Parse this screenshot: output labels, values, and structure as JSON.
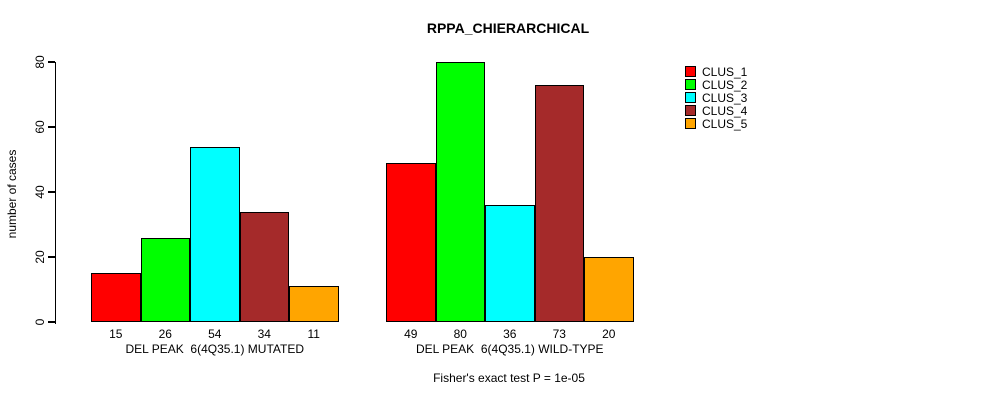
{
  "chart_data": {
    "type": "bar",
    "title": "RPPA_CHIERARCHICAL",
    "ylabel": "number of cases",
    "ylim": [
      0,
      80
    ],
    "yticks": [
      0,
      20,
      40,
      60,
      80
    ],
    "grid": false,
    "legend_position": "right-inside",
    "clusters": [
      {
        "name": "CLUS_1",
        "color": "#FF0000"
      },
      {
        "name": "CLUS_2",
        "color": "#00FF00"
      },
      {
        "name": "CLUS_3",
        "color": "#00FFFF"
      },
      {
        "name": "CLUS_4",
        "color": "#A52A2A"
      },
      {
        "name": "CLUS_5",
        "color": "#FFA500"
      }
    ],
    "groups": [
      {
        "label": "DEL PEAK  6(4Q35.1) MUTATED",
        "values": [
          15,
          26,
          54,
          34,
          11
        ]
      },
      {
        "label": "DEL PEAK  6(4Q35.1) WILD-TYPE",
        "values": [
          49,
          80,
          36,
          73,
          20
        ]
      }
    ],
    "footnote": "Fisher's exact test P = 1e-05",
    "axis_color": "#000000",
    "bar_border_color": "#000000"
  }
}
